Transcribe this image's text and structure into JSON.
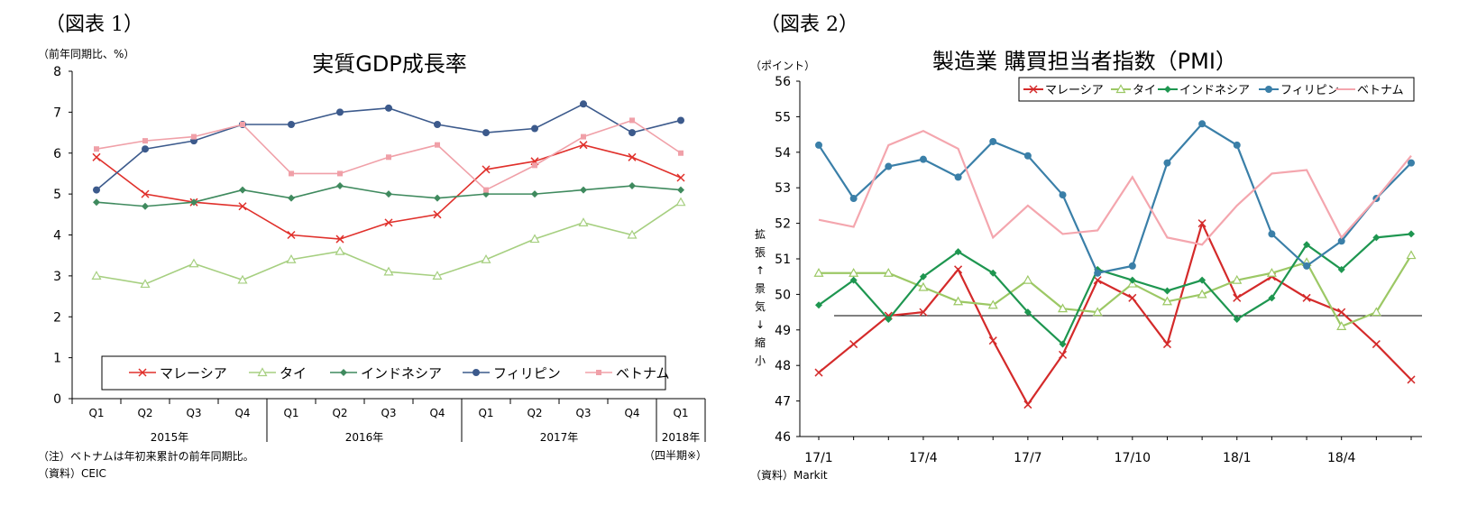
{
  "chart_data": [
    {
      "type": "line",
      "figure_label": "（図表 1）",
      "title": "実質GDP成長率",
      "ylabel": "（前年同期比、%）",
      "ylim": [
        0,
        8
      ],
      "yticks": [
        "0",
        "1",
        "2",
        "3",
        "4",
        "5",
        "6",
        "7",
        "8"
      ],
      "quarters": [
        "Q1",
        "Q2",
        "Q3",
        "Q4",
        "Q1",
        "Q2",
        "Q3",
        "Q4",
        "Q1",
        "Q2",
        "Q3",
        "Q4",
        "Q1"
      ],
      "years": [
        "2015年",
        "2016年",
        "2017年",
        "2018年"
      ],
      "xlabel": "（四半期※）",
      "note": "（注）ベトナムは年初来累計の前年同期比。",
      "source": "（資料）CEIC",
      "series": [
        {
          "name": "マレーシア",
          "color": "#e0302b",
          "marker": "x",
          "values": [
            5.9,
            5.0,
            4.8,
            4.7,
            4.0,
            3.9,
            4.3,
            4.5,
            5.6,
            5.8,
            6.2,
            5.9,
            5.4
          ]
        },
        {
          "name": "タイ",
          "color": "#a6cf80",
          "marker": "triangle",
          "values": [
            3.0,
            2.8,
            3.3,
            2.9,
            3.4,
            3.6,
            3.1,
            3.0,
            3.4,
            3.9,
            4.3,
            4.0,
            4.8
          ]
        },
        {
          "name": "インドネシア",
          "color": "#3f8a5e",
          "marker": "diamond",
          "values": [
            4.8,
            4.7,
            4.8,
            5.1,
            4.9,
            5.2,
            5.0,
            4.9,
            5.0,
            5.0,
            5.1,
            5.2,
            5.1
          ]
        },
        {
          "name": "フィリピン",
          "color": "#3c5a8c",
          "marker": "circle",
          "values": [
            5.1,
            6.1,
            6.3,
            6.7,
            6.7,
            7.0,
            7.1,
            6.7,
            6.5,
            6.6,
            7.2,
            6.5,
            6.8
          ]
        },
        {
          "name": "ベトナム",
          "color": "#f0a0a8",
          "marker": "square",
          "values": [
            6.1,
            6.3,
            6.4,
            6.7,
            5.5,
            5.5,
            5.9,
            6.2,
            5.1,
            5.7,
            6.4,
            6.8,
            6.0
          ]
        }
      ]
    },
    {
      "type": "line",
      "figure_label": "（図表 2）",
      "title": "製造業 購買担当者指数（PMI）",
      "ylabel": "（ポイント）",
      "ylim": [
        46,
        56
      ],
      "yticks": [
        "46",
        "47",
        "48",
        "49",
        "50",
        "51",
        "52",
        "53",
        "54",
        "55",
        "56"
      ],
      "reference_y": 49.4,
      "x_labels": [
        "17/1",
        "17/4",
        "17/7",
        "17/10",
        "18/1",
        "18/4"
      ],
      "side_label_top": [
        "拡",
        "張",
        "↑",
        "景",
        "気",
        "↓",
        "縮",
        "小"
      ],
      "source": "（資料）Markit",
      "series": [
        {
          "name": "マレーシア",
          "color": "#d42a2a",
          "marker": "x",
          "values": [
            47.8,
            48.6,
            49.4,
            49.5,
            50.7,
            48.7,
            46.9,
            48.3,
            50.4,
            49.9,
            48.6,
            52.0,
            49.9,
            50.5,
            49.9,
            49.5,
            48.6,
            47.6
          ]
        },
        {
          "name": "タイ",
          "color": "#9cc865",
          "marker": "triangle",
          "values": [
            50.6,
            50.6,
            50.6,
            50.2,
            49.8,
            49.7,
            50.4,
            49.6,
            49.5,
            50.3,
            49.8,
            50.0,
            50.4,
            50.6,
            50.9,
            49.1,
            49.5,
            51.1
          ]
        },
        {
          "name": "インドネシア",
          "color": "#1e9650",
          "marker": "diamond",
          "values": [
            49.7,
            50.4,
            49.3,
            50.5,
            51.2,
            50.6,
            49.5,
            48.6,
            50.7,
            50.4,
            50.1,
            50.4,
            49.3,
            49.9,
            51.4,
            50.7,
            51.6,
            51.7
          ]
        },
        {
          "name": "フィリピン",
          "color": "#3a7fa8",
          "marker": "circle",
          "values": [
            54.2,
            52.7,
            53.6,
            53.8,
            53.3,
            54.3,
            53.9,
            52.8,
            50.6,
            50.8,
            53.7,
            54.8,
            54.2,
            51.7,
            50.8,
            51.5,
            52.7,
            53.7
          ]
        },
        {
          "name": "ベトナム",
          "color": "#f4a6ae",
          "marker": "none",
          "values": [
            52.1,
            51.9,
            54.2,
            54.6,
            54.1,
            51.6,
            52.5,
            51.7,
            51.8,
            53.3,
            51.6,
            51.4,
            52.5,
            53.4,
            53.5,
            51.6,
            52.7,
            53.9
          ]
        }
      ]
    }
  ]
}
